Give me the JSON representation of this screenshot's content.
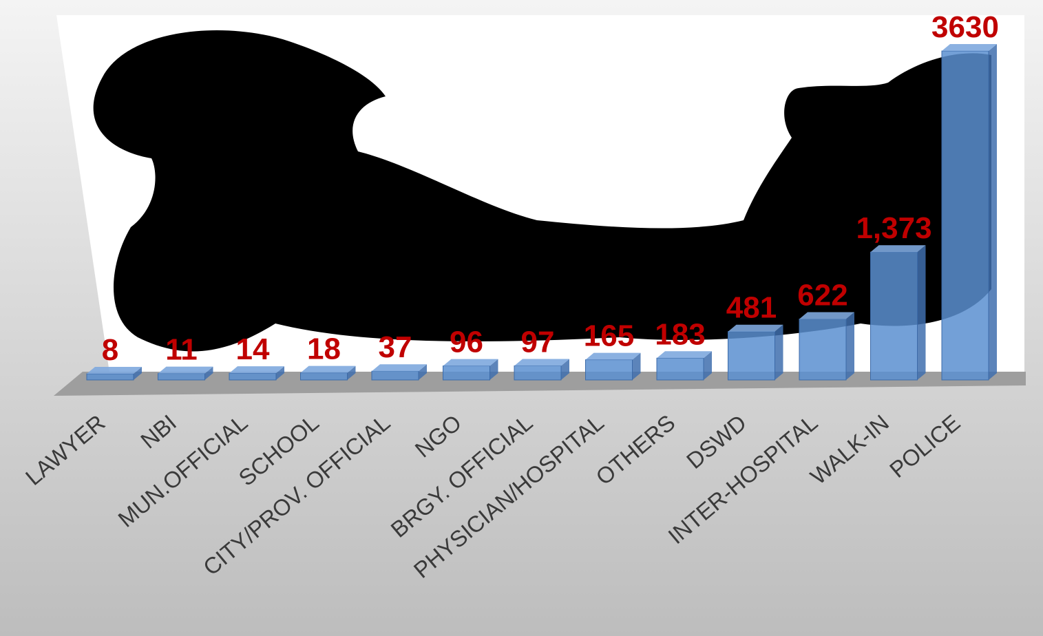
{
  "chart_data": {
    "type": "bar",
    "categories": [
      "LAWYER",
      "NBI",
      "MUN.OFFICIAL",
      "SCHOOL",
      "CITY/PROV. OFFICIAL",
      "NGO",
      "BRGY. OFFICIAL",
      "PHYSICIAN/HOSPITAL",
      "OTHERS",
      "DSWD",
      "INTER-HOSPITAL",
      "WALK-IN",
      "POLICE"
    ],
    "values": [
      8,
      11,
      14,
      18,
      37,
      96,
      97,
      165,
      183,
      481,
      622,
      1373,
      3630
    ],
    "value_labels": [
      "8",
      "11",
      "14",
      "18",
      "37",
      "96",
      "97",
      "165",
      "183",
      "481",
      "622",
      "1,373",
      "3630"
    ],
    "color": "#5b8fd0"
  }
}
